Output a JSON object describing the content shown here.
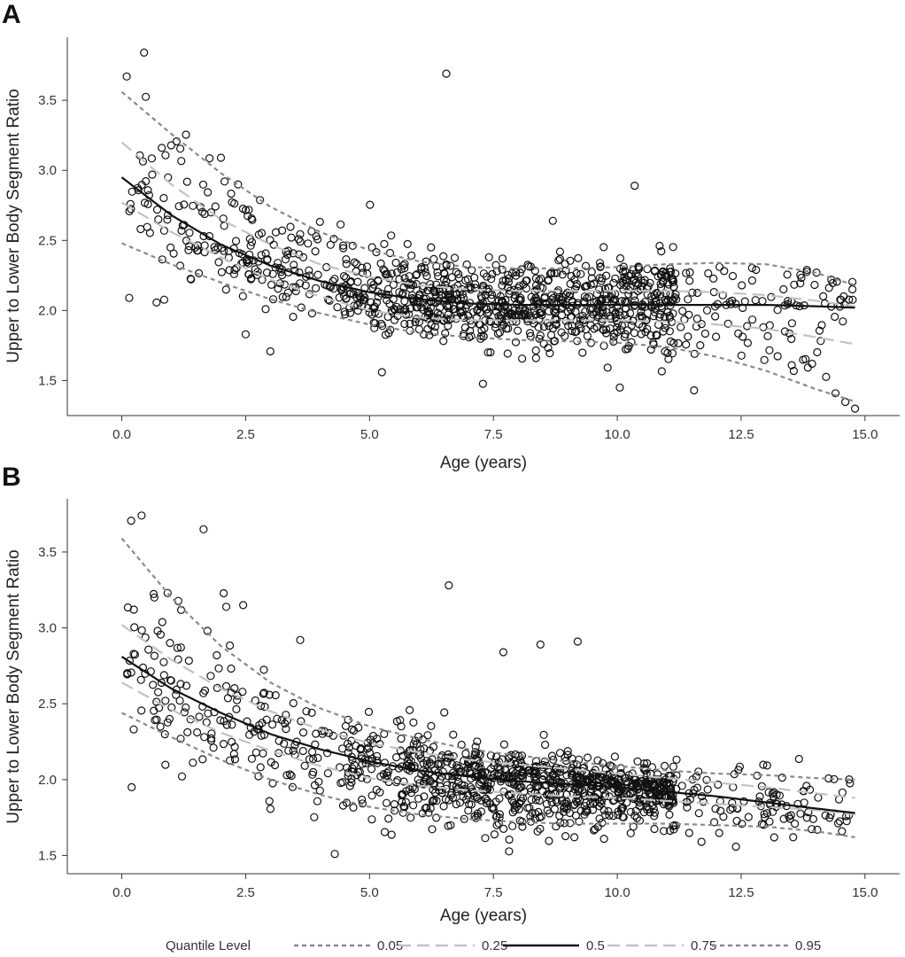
{
  "figure": {
    "legend": {
      "title": "Quantile Level",
      "entries": [
        {
          "label": "0.05",
          "quantile": 0.05,
          "color": "#8a8a8a",
          "style": "short-dash"
        },
        {
          "label": "0.25",
          "quantile": 0.25,
          "color": "#c2c2c2",
          "style": "long-dash"
        },
        {
          "label": "0.5",
          "quantile": 0.5,
          "color": "#111111",
          "style": "solid"
        },
        {
          "label": "0.75",
          "quantile": 0.75,
          "color": "#c2c2c2",
          "style": "long-dash"
        },
        {
          "label": "0.95",
          "quantile": 0.95,
          "color": "#8a8a8a",
          "style": "short-dash"
        }
      ]
    }
  },
  "chart_data": [
    {
      "panel": "A",
      "type": "scatter",
      "title": "",
      "xlabel": "Age (years)",
      "ylabel": "Upper to Lower Body Segment Ratio",
      "xlim": [
        -1.1,
        15.7
      ],
      "ylim": [
        1.25,
        3.95
      ],
      "xticks": [
        0,
        2.5,
        5,
        7.5,
        10,
        12.5,
        15
      ],
      "xtick_labels": [
        "0.0",
        "2.5",
        "5.0",
        "7.5",
        "10.0",
        "12.5",
        "15.0"
      ],
      "yticks": [
        1.5,
        2.0,
        2.5,
        3.0,
        3.5
      ],
      "ytick_labels": [
        "1.5",
        "2.0",
        "2.5",
        "3.0",
        "3.5"
      ],
      "marker": "open-circle",
      "outliers": [
        {
          "x": 0.1,
          "y": 3.67
        },
        {
          "x": 0.45,
          "y": 3.84
        },
        {
          "x": 0.15,
          "y": 2.09
        },
        {
          "x": 6.55,
          "y": 3.69
        },
        {
          "x": 10.35,
          "y": 2.89
        },
        {
          "x": 10.05,
          "y": 1.45
        },
        {
          "x": 11.55,
          "y": 1.43
        },
        {
          "x": 5.25,
          "y": 1.56
        },
        {
          "x": 2.0,
          "y": 3.09
        },
        {
          "x": 2.5,
          "y": 1.83
        },
        {
          "x": 8.7,
          "y": 2.64
        },
        {
          "x": 12.8,
          "y": 2.29
        }
      ],
      "quantile_curves": [
        {
          "quantile": 0.05,
          "x": [
            0,
            1,
            2,
            3,
            4,
            5,
            6,
            7,
            8,
            9,
            10,
            11,
            12,
            13,
            14,
            14.8
          ],
          "y": [
            2.48,
            2.33,
            2.2,
            2.08,
            1.98,
            1.9,
            1.84,
            1.81,
            1.79,
            1.78,
            1.77,
            1.74,
            1.67,
            1.57,
            1.44,
            1.35
          ]
        },
        {
          "quantile": 0.25,
          "x": [
            0,
            1,
            2,
            3,
            4,
            5,
            6,
            7,
            8,
            9,
            10,
            11,
            12,
            13,
            14,
            14.8
          ],
          "y": [
            2.77,
            2.56,
            2.38,
            2.22,
            2.1,
            2.0,
            1.95,
            1.93,
            1.93,
            1.93,
            1.93,
            1.92,
            1.9,
            1.87,
            1.81,
            1.76
          ]
        },
        {
          "quantile": 0.5,
          "x": [
            0,
            1,
            2,
            3,
            4,
            5,
            6,
            7,
            8,
            9,
            10,
            11,
            12,
            13,
            14,
            14.8
          ],
          "y": [
            2.95,
            2.68,
            2.47,
            2.32,
            2.21,
            2.13,
            2.08,
            2.05,
            2.04,
            2.04,
            2.04,
            2.04,
            2.04,
            2.04,
            2.03,
            2.02
          ]
        },
        {
          "quantile": 0.75,
          "x": [
            0,
            1,
            2,
            3,
            4,
            5,
            6,
            7,
            8,
            9,
            10,
            11,
            12,
            13,
            14,
            14.8
          ],
          "y": [
            3.2,
            2.9,
            2.65,
            2.47,
            2.33,
            2.24,
            2.18,
            2.15,
            2.14,
            2.14,
            2.14,
            2.14,
            2.13,
            2.11,
            2.07,
            2.03
          ]
        },
        {
          "quantile": 0.95,
          "x": [
            0,
            1,
            2,
            3,
            4,
            5,
            6,
            7,
            8,
            9,
            10,
            11,
            12,
            13,
            14,
            14.8
          ],
          "y": [
            3.56,
            3.26,
            2.98,
            2.74,
            2.56,
            2.43,
            2.35,
            2.31,
            2.3,
            2.3,
            2.31,
            2.33,
            2.34,
            2.33,
            2.27,
            2.18
          ]
        }
      ]
    },
    {
      "panel": "B",
      "type": "scatter",
      "title": "",
      "xlabel": "Age (years)",
      "ylabel": "Upper to Lower Body Segment Ratio",
      "xlim": [
        -1.1,
        15.7
      ],
      "ylim": [
        1.38,
        3.85
      ],
      "xticks": [
        0,
        2.5,
        5,
        7.5,
        10,
        12.5,
        15
      ],
      "xtick_labels": [
        "0.0",
        "2.5",
        "5.0",
        "7.5",
        "10.0",
        "12.5",
        "15.0"
      ],
      "yticks": [
        1.5,
        2.0,
        2.5,
        3.0,
        3.5
      ],
      "ytick_labels": [
        "1.5",
        "2.0",
        "2.5",
        "3.0",
        "3.5"
      ],
      "marker": "open-circle",
      "outliers": [
        {
          "x": 0.4,
          "y": 3.74
        },
        {
          "x": 1.65,
          "y": 3.65
        },
        {
          "x": 0.2,
          "y": 1.95
        },
        {
          "x": 6.6,
          "y": 3.28
        },
        {
          "x": 7.7,
          "y": 2.84
        },
        {
          "x": 8.45,
          "y": 2.89
        },
        {
          "x": 9.2,
          "y": 2.91
        },
        {
          "x": 4.3,
          "y": 1.51
        },
        {
          "x": 2.45,
          "y": 3.15
        },
        {
          "x": 3.6,
          "y": 2.92
        },
        {
          "x": 11.7,
          "y": 1.59
        },
        {
          "x": 13.55,
          "y": 1.62
        }
      ],
      "quantile_curves": [
        {
          "quantile": 0.05,
          "x": [
            0,
            1,
            2,
            3,
            4,
            5,
            6,
            7,
            8,
            9,
            10,
            11,
            12,
            13,
            14,
            14.8
          ],
          "y": [
            2.44,
            2.28,
            2.13,
            2.0,
            1.9,
            1.82,
            1.77,
            1.74,
            1.72,
            1.71,
            1.71,
            1.71,
            1.7,
            1.69,
            1.66,
            1.62
          ]
        },
        {
          "quantile": 0.25,
          "x": [
            0,
            1,
            2,
            3,
            4,
            5,
            6,
            7,
            8,
            9,
            10,
            11,
            12,
            13,
            14,
            14.8
          ],
          "y": [
            2.64,
            2.46,
            2.31,
            2.19,
            2.09,
            2.01,
            1.96,
            1.93,
            1.91,
            1.89,
            1.88,
            1.86,
            1.84,
            1.82,
            1.8,
            1.77
          ]
        },
        {
          "quantile": 0.5,
          "x": [
            0,
            1,
            2,
            3,
            4,
            5,
            6,
            7,
            8,
            9,
            10,
            11,
            12,
            13,
            14,
            14.8
          ],
          "y": [
            2.81,
            2.6,
            2.44,
            2.3,
            2.2,
            2.12,
            2.06,
            2.02,
            1.99,
            1.97,
            1.95,
            1.92,
            1.89,
            1.85,
            1.81,
            1.78
          ]
        },
        {
          "quantile": 0.75,
          "x": [
            0,
            1,
            2,
            3,
            4,
            5,
            6,
            7,
            8,
            9,
            10,
            11,
            12,
            13,
            14,
            14.8
          ],
          "y": [
            3.02,
            2.79,
            2.6,
            2.45,
            2.33,
            2.24,
            2.18,
            2.13,
            2.1,
            2.07,
            2.04,
            2.01,
            1.98,
            1.95,
            1.91,
            1.88
          ]
        },
        {
          "quantile": 0.95,
          "x": [
            0,
            1,
            2,
            3,
            4,
            5,
            6,
            7,
            8,
            9,
            10,
            11,
            12,
            13,
            14,
            14.8
          ],
          "y": [
            3.59,
            3.2,
            2.88,
            2.64,
            2.47,
            2.35,
            2.27,
            2.2,
            2.16,
            2.12,
            2.09,
            2.06,
            2.04,
            2.03,
            2.01,
            2.0
          ]
        }
      ]
    }
  ]
}
